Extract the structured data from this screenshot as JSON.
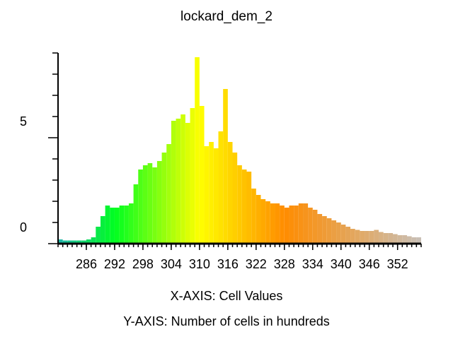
{
  "chart_data": {
    "type": "histogram",
    "title": "lockard_dem_2",
    "x_label": "X-AXIS: Cell Values",
    "y_label": "Y-AXIS: Number of cells in hundreds",
    "bins": [
      280,
      281,
      282,
      283,
      284,
      285,
      286,
      287,
      288,
      289,
      290,
      291,
      292,
      293,
      294,
      295,
      296,
      297,
      298,
      299,
      300,
      301,
      302,
      303,
      304,
      305,
      306,
      307,
      308,
      309,
      310,
      311,
      312,
      313,
      314,
      315,
      316,
      317,
      318,
      319,
      320,
      321,
      322,
      323,
      324,
      325,
      326,
      327,
      328,
      329,
      330,
      331,
      332,
      333,
      334,
      335,
      336,
      337,
      338,
      339,
      340,
      341,
      342,
      343,
      344,
      345,
      346,
      347,
      348,
      349,
      350,
      351,
      352,
      353,
      354,
      355,
      356,
      357
    ],
    "values": [
      0.2,
      0.15,
      0.15,
      0.15,
      0.15,
      0.15,
      0.2,
      0.3,
      0.8,
      1.3,
      1.8,
      1.7,
      1.7,
      1.8,
      1.8,
      1.9,
      2.8,
      3.5,
      3.7,
      3.8,
      3.6,
      3.9,
      4.3,
      4.7,
      5.8,
      5.9,
      6.1,
      5.7,
      6.4,
      8.8,
      6.5,
      4.6,
      4.8,
      4.5,
      5.3,
      7.3,
      4.8,
      4.3,
      3.7,
      3.5,
      3.4,
      2.6,
      2.3,
      2.1,
      2.0,
      1.9,
      1.9,
      1.8,
      1.7,
      1.8,
      1.8,
      1.9,
      1.9,
      1.7,
      1.6,
      1.4,
      1.3,
      1.2,
      1.1,
      1.0,
      0.9,
      0.8,
      0.7,
      0.65,
      0.6,
      0.6,
      0.6,
      0.65,
      0.55,
      0.5,
      0.5,
      0.45,
      0.4,
      0.4,
      0.35,
      0.3,
      0.3
    ],
    "xlim": [
      280,
      357
    ],
    "xticks": [
      286,
      292,
      298,
      304,
      310,
      316,
      322,
      328,
      334,
      340,
      346,
      352
    ],
    "ylim": [
      0,
      9
    ],
    "yticks": [
      0,
      5
    ],
    "yminorticks": [
      1,
      2,
      3,
      4,
      6,
      7,
      8,
      9
    ],
    "color_stops": [
      {
        "value": 280,
        "color": "#20b2aa"
      },
      {
        "value": 292,
        "color": "#00ff20"
      },
      {
        "value": 310,
        "color": "#ffff00"
      },
      {
        "value": 328,
        "color": "#ff8c00"
      },
      {
        "value": 357,
        "color": "#c8c0b8"
      }
    ]
  }
}
